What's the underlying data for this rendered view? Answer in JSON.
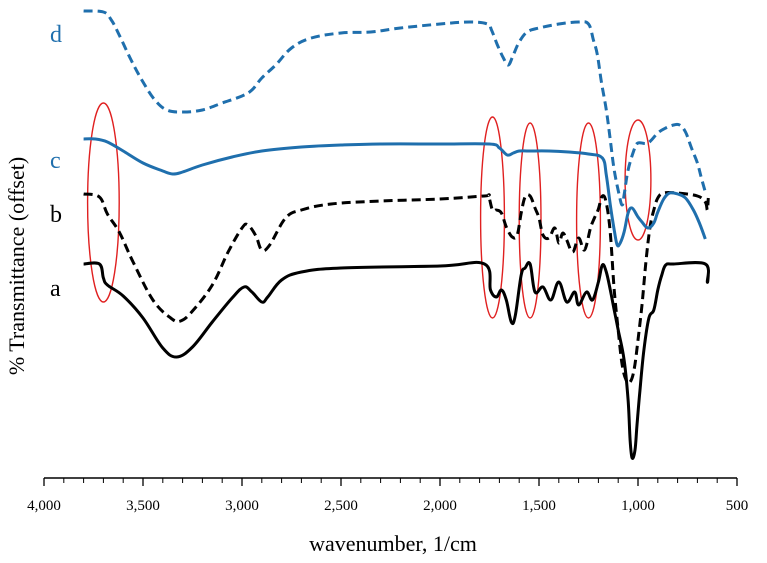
{
  "chart_data": {
    "type": "line",
    "xlabel": "wavenumber, 1/cm",
    "ylabel": "% Transmittance (offset)",
    "xlim": [
      4000,
      500
    ],
    "x_reversed": true,
    "grid": false,
    "y_ticks_shown": false,
    "xticks": [
      {
        "value": 4000,
        "label": "4,000"
      },
      {
        "value": 3500,
        "label": "3,500"
      },
      {
        "value": 3000,
        "label": "3,000"
      },
      {
        "value": 2500,
        "label": "2,500"
      },
      {
        "value": 2000,
        "label": "2,000"
      },
      {
        "value": 1500,
        "label": "1,500"
      },
      {
        "value": 1000,
        "label": "1,000"
      },
      {
        "value": 500,
        "label": "500"
      }
    ],
    "series": [
      {
        "name": "a",
        "color": "#000000",
        "dash": "solid",
        "points": [
          [
            3800,
            264
          ],
          [
            3720,
            264
          ],
          [
            3700,
            278
          ],
          [
            3680,
            285
          ],
          [
            3600,
            296
          ],
          [
            3500,
            318
          ],
          [
            3400,
            348
          ],
          [
            3330,
            357
          ],
          [
            3250,
            347
          ],
          [
            3150,
            322
          ],
          [
            3050,
            298
          ],
          [
            2990,
            287
          ],
          [
            2950,
            292
          ],
          [
            2900,
            302
          ],
          [
            2870,
            297
          ],
          [
            2800,
            280
          ],
          [
            2700,
            272
          ],
          [
            2500,
            268
          ],
          [
            2000,
            266
          ],
          [
            1775,
            264
          ],
          [
            1745,
            290
          ],
          [
            1715,
            297
          ],
          [
            1690,
            290
          ],
          [
            1665,
            300
          ],
          [
            1640,
            322
          ],
          [
            1620,
            316
          ],
          [
            1590,
            275
          ],
          [
            1570,
            268
          ],
          [
            1545,
            264
          ],
          [
            1520,
            292
          ],
          [
            1480,
            287
          ],
          [
            1440,
            300
          ],
          [
            1400,
            282
          ],
          [
            1360,
            302
          ],
          [
            1320,
            292
          ],
          [
            1300,
            305
          ],
          [
            1260,
            292
          ],
          [
            1230,
            300
          ],
          [
            1200,
            282
          ],
          [
            1180,
            265
          ],
          [
            1160,
            272
          ],
          [
            1140,
            290
          ],
          [
            1120,
            310
          ],
          [
            1100,
            330
          ],
          [
            1070,
            360
          ],
          [
            1050,
            400
          ],
          [
            1040,
            440
          ],
          [
            1030,
            458
          ],
          [
            1015,
            450
          ],
          [
            1005,
            425
          ],
          [
            990,
            390
          ],
          [
            970,
            350
          ],
          [
            945,
            318
          ],
          [
            920,
            310
          ],
          [
            900,
            290
          ],
          [
            880,
            275
          ],
          [
            860,
            265
          ],
          [
            820,
            264
          ],
          [
            660,
            264
          ],
          [
            650,
            282
          ],
          [
            645,
            275
          ]
        ]
      },
      {
        "name": "b",
        "color": "#000000",
        "dash": "dashed",
        "points": [
          [
            3800,
            194
          ],
          [
            3720,
            197
          ],
          [
            3680,
            214
          ],
          [
            3620,
            232
          ],
          [
            3550,
            262
          ],
          [
            3450,
            300
          ],
          [
            3360,
            318
          ],
          [
            3310,
            321
          ],
          [
            3250,
            311
          ],
          [
            3150,
            285
          ],
          [
            3070,
            252
          ],
          [
            3000,
            228
          ],
          [
            2970,
            225
          ],
          [
            2930,
            236
          ],
          [
            2900,
            250
          ],
          [
            2860,
            245
          ],
          [
            2780,
            218
          ],
          [
            2700,
            210
          ],
          [
            2550,
            204
          ],
          [
            2300,
            201
          ],
          [
            2000,
            199
          ],
          [
            1775,
            196
          ],
          [
            1755,
            196
          ],
          [
            1735,
            210
          ],
          [
            1715,
            210
          ],
          [
            1690,
            213
          ],
          [
            1665,
            227
          ],
          [
            1635,
            237
          ],
          [
            1610,
            235
          ],
          [
            1590,
            213
          ],
          [
            1570,
            197
          ],
          [
            1545,
            196
          ],
          [
            1520,
            208
          ],
          [
            1500,
            218
          ],
          [
            1480,
            235
          ],
          [
            1450,
            238
          ],
          [
            1420,
            228
          ],
          [
            1400,
            243
          ],
          [
            1380,
            233
          ],
          [
            1360,
            240
          ],
          [
            1330,
            252
          ],
          [
            1300,
            238
          ],
          [
            1270,
            250
          ],
          [
            1240,
            228
          ],
          [
            1220,
            218
          ],
          [
            1200,
            209
          ],
          [
            1180,
            196
          ],
          [
            1160,
            203
          ],
          [
            1140,
            233
          ],
          [
            1120,
            290
          ],
          [
            1100,
            330
          ],
          [
            1080,
            365
          ],
          [
            1060,
            380
          ],
          [
            1040,
            382
          ],
          [
            1020,
            370
          ],
          [
            1000,
            340
          ],
          [
            980,
            305
          ],
          [
            960,
            262
          ],
          [
            940,
            228
          ],
          [
            920,
            210
          ],
          [
            900,
            198
          ],
          [
            870,
            193
          ],
          [
            800,
            193
          ],
          [
            700,
            196
          ],
          [
            660,
            202
          ],
          [
            650,
            210
          ],
          [
            645,
            198
          ]
        ]
      },
      {
        "name": "c",
        "color": "#1f6fad",
        "dash": "solid",
        "points": [
          [
            3800,
            139
          ],
          [
            3740,
            139
          ],
          [
            3680,
            142
          ],
          [
            3600,
            151
          ],
          [
            3500,
            163
          ],
          [
            3400,
            171
          ],
          [
            3350,
            174
          ],
          [
            3300,
            172
          ],
          [
            3200,
            165
          ],
          [
            3050,
            157
          ],
          [
            2900,
            151
          ],
          [
            2700,
            147
          ],
          [
            2500,
            145
          ],
          [
            2300,
            144
          ],
          [
            2000,
            144
          ],
          [
            1750,
            144
          ],
          [
            1700,
            148
          ],
          [
            1660,
            155
          ],
          [
            1630,
            153
          ],
          [
            1600,
            151
          ],
          [
            1550,
            151
          ],
          [
            1450,
            151
          ],
          [
            1350,
            152
          ],
          [
            1250,
            154
          ],
          [
            1180,
            158
          ],
          [
            1160,
            175
          ],
          [
            1140,
            205
          ],
          [
            1120,
            230
          ],
          [
            1105,
            245
          ],
          [
            1090,
            243
          ],
          [
            1070,
            232
          ],
          [
            1050,
            213
          ],
          [
            1030,
            208
          ],
          [
            1000,
            217
          ],
          [
            980,
            222
          ],
          [
            950,
            228
          ],
          [
            920,
            223
          ],
          [
            900,
            212
          ],
          [
            870,
            199
          ],
          [
            840,
            193
          ],
          [
            800,
            194
          ],
          [
            760,
            198
          ],
          [
            720,
            210
          ],
          [
            690,
            223
          ],
          [
            660,
            239
          ]
        ]
      },
      {
        "name": "d",
        "color": "#1f6fad",
        "dash": "dashed",
        "points": [
          [
            3800,
            11
          ],
          [
            3700,
            12
          ],
          [
            3660,
            20
          ],
          [
            3620,
            35
          ],
          [
            3560,
            60
          ],
          [
            3500,
            82
          ],
          [
            3440,
            100
          ],
          [
            3380,
            110
          ],
          [
            3300,
            112
          ],
          [
            3200,
            110
          ],
          [
            3100,
            103
          ],
          [
            3000,
            96
          ],
          [
            2950,
            90
          ],
          [
            2900,
            78
          ],
          [
            2830,
            65
          ],
          [
            2750,
            48
          ],
          [
            2650,
            38
          ],
          [
            2500,
            33
          ],
          [
            2350,
            32
          ],
          [
            2200,
            28
          ],
          [
            2000,
            24
          ],
          [
            1850,
            22
          ],
          [
            1760,
            24
          ],
          [
            1740,
            30
          ],
          [
            1710,
            45
          ],
          [
            1680,
            58
          ],
          [
            1655,
            65
          ],
          [
            1630,
            55
          ],
          [
            1600,
            42
          ],
          [
            1560,
            32
          ],
          [
            1500,
            28
          ],
          [
            1400,
            24
          ],
          [
            1300,
            22
          ],
          [
            1250,
            24
          ],
          [
            1225,
            40
          ],
          [
            1205,
            55
          ],
          [
            1185,
            82
          ],
          [
            1160,
            110
          ],
          [
            1140,
            140
          ],
          [
            1120,
            170
          ],
          [
            1095,
            195
          ],
          [
            1080,
            205
          ],
          [
            1070,
            195
          ],
          [
            1050,
            170
          ],
          [
            1020,
            150
          ],
          [
            1000,
            143
          ],
          [
            950,
            143
          ],
          [
            900,
            133
          ],
          [
            860,
            128
          ],
          [
            820,
            125
          ],
          [
            790,
            125
          ],
          [
            760,
            132
          ],
          [
            730,
            148
          ],
          [
            700,
            163
          ],
          [
            680,
            178
          ],
          [
            660,
            192
          ]
        ]
      }
    ],
    "series_labels": [
      {
        "text": "a",
        "color": "#000000"
      },
      {
        "text": "b",
        "color": "#000000"
      },
      {
        "text": "c",
        "color": "#1f6fad"
      },
      {
        "text": "d",
        "color": "#1f6fad"
      }
    ],
    "annotations": [
      {
        "type": "ellipse",
        "color": "#e02020",
        "x_center": 3700,
        "x_halfwidth": 80
      },
      {
        "type": "ellipse",
        "color": "#e02020",
        "x_center": 1735,
        "x_halfwidth": 60
      },
      {
        "type": "ellipse",
        "color": "#e02020",
        "x_center": 1545,
        "x_halfwidth": 55
      },
      {
        "type": "ellipse",
        "color": "#e02020",
        "x_center": 1250,
        "x_halfwidth": 60
      },
      {
        "type": "ellipse",
        "color": "#e02020",
        "x_center": 1000,
        "x_halfwidth": 65
      }
    ]
  }
}
